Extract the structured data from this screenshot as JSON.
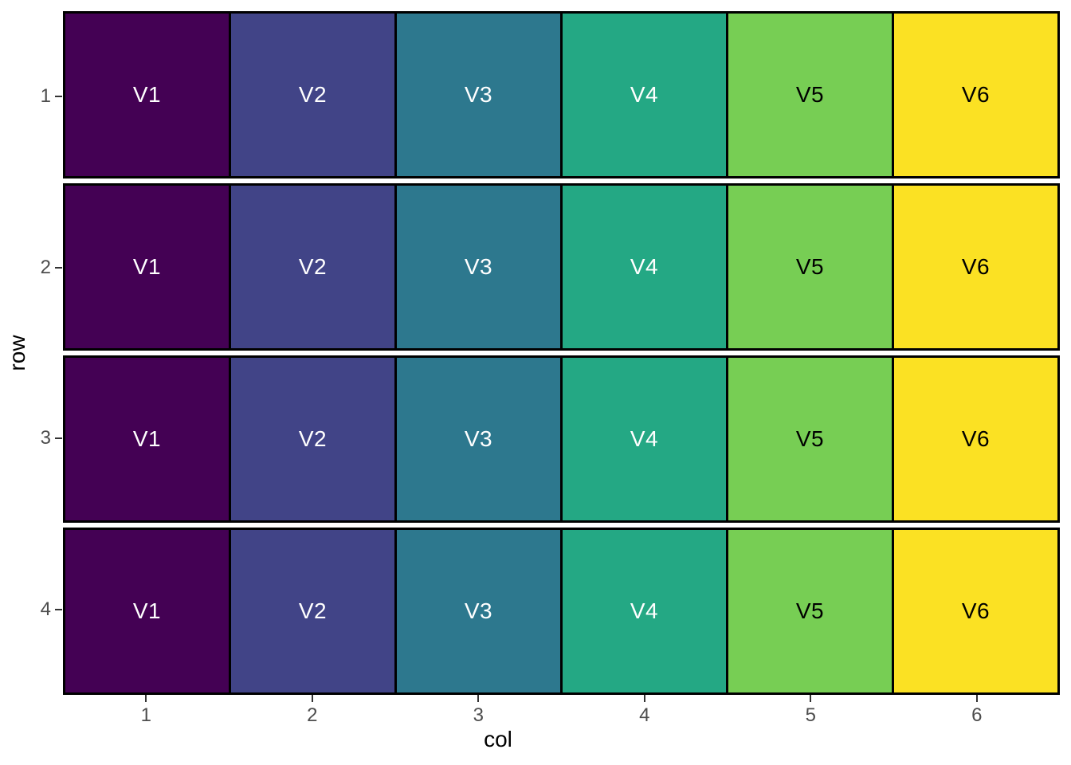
{
  "chart_data": {
    "type": "heatmap",
    "title": "",
    "xlabel": "col",
    "ylabel": "row",
    "x_ticks": [
      "1",
      "2",
      "3",
      "4",
      "5",
      "6"
    ],
    "y_ticks": [
      "1",
      "2",
      "3",
      "4"
    ],
    "x_range": [
      0.5,
      6.5
    ],
    "y_range": [
      0.5,
      4.5
    ],
    "grid": false,
    "legend": "none",
    "columns": [
      {
        "label": "V1",
        "fill": "#440154",
        "text_color": "#ffffff"
      },
      {
        "label": "V2",
        "fill": "#414487",
        "text_color": "#ffffff"
      },
      {
        "label": "V3",
        "fill": "#2d788e",
        "text_color": "#ffffff"
      },
      {
        "label": "V4",
        "fill": "#24a884",
        "text_color": "#ffffff"
      },
      {
        "label": "V5",
        "fill": "#77ce54",
        "text_color": "#000000"
      },
      {
        "label": "V6",
        "fill": "#fbe123",
        "text_color": "#000000"
      }
    ],
    "rows": [
      "1",
      "2",
      "3",
      "4"
    ],
    "cells": [
      [
        "V1",
        "V2",
        "V3",
        "V4",
        "V5",
        "V6"
      ],
      [
        "V1",
        "V2",
        "V3",
        "V4",
        "V5",
        "V6"
      ],
      [
        "V1",
        "V2",
        "V3",
        "V4",
        "V5",
        "V6"
      ],
      [
        "V1",
        "V2",
        "V3",
        "V4",
        "V5",
        "V6"
      ]
    ],
    "tile_border_color": "#000000",
    "tick_color": "#333333",
    "tick_label_color": "#4d4d4d",
    "axis_title_color": "#000000",
    "background_color": "#ffffff"
  }
}
